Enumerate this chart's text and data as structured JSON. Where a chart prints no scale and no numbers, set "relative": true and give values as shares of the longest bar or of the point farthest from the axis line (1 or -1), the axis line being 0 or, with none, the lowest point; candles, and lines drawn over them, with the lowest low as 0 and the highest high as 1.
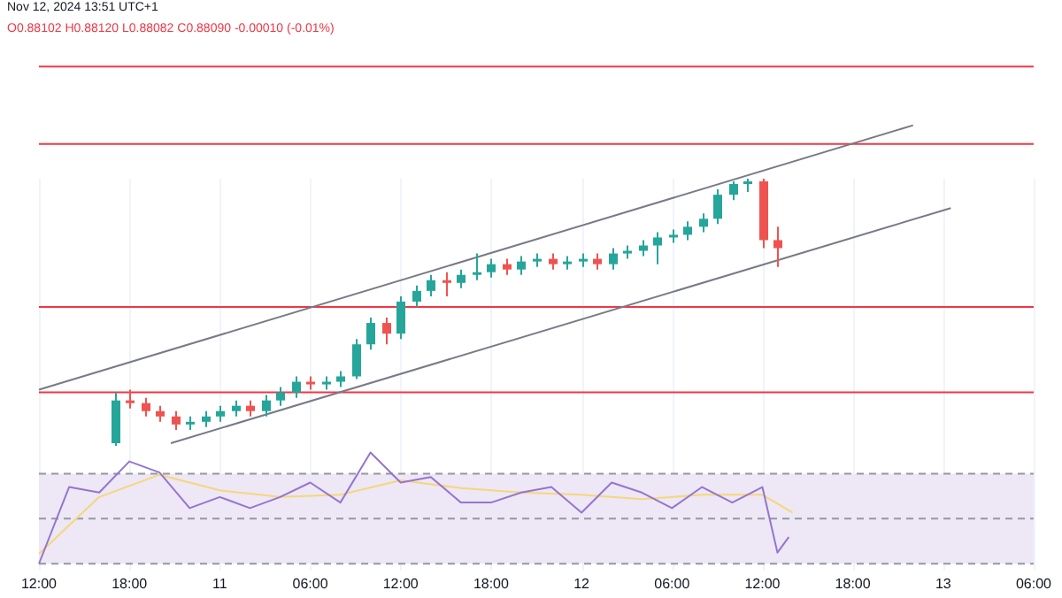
{
  "chart_data": [
    {
      "type": "candlestick",
      "title": "Nov 12, 2024 13:51 UTC+1",
      "subtitle": "O0.88102 H0.88120 L0.88082 C0.88090 -0.00010 (-0.01%)",
      "relative": true,
      "grid": "x",
      "tick_labels": false,
      "marker": "none",
      "x": [
        "2024-11-10T17:00",
        "2024-11-10T18:00",
        "2024-11-10T19:00",
        "2024-11-10T20:00",
        "2024-11-10T21:00",
        "2024-11-10T22:00",
        "2024-11-10T23:00",
        "2024-11-11T00:00",
        "2024-11-11T01:00",
        "2024-11-11T02:00",
        "2024-11-11T03:00",
        "2024-11-11T04:00",
        "2024-11-11T05:00",
        "2024-11-11T06:00",
        "2024-11-11T07:00",
        "2024-11-11T08:00",
        "2024-11-11T09:00",
        "2024-11-11T10:00",
        "2024-11-11T11:00",
        "2024-11-11T12:00",
        "2024-11-11T13:00",
        "2024-11-11T14:00",
        "2024-11-11T15:00",
        "2024-11-11T16:00",
        "2024-11-11T17:00",
        "2024-11-11T18:00",
        "2024-11-11T19:00",
        "2024-11-11T20:00",
        "2024-11-11T21:00",
        "2024-11-11T22:00",
        "2024-11-11T23:00",
        "2024-11-12T00:00",
        "2024-11-12T01:00",
        "2024-11-12T02:00",
        "2024-11-12T03:00",
        "2024-11-12T04:00",
        "2024-11-12T05:00",
        "2024-11-12T06:00",
        "2024-11-12T07:00",
        "2024-11-12T08:00",
        "2024-11-12T09:00",
        "2024-11-12T10:00",
        "2024-11-12T11:00",
        "2024-11-12T12:00",
        "2024-11-12T13:00"
      ],
      "ohlc": [
        [
          0.01,
          0.2,
          0,
          0.17
        ],
        [
          0.17,
          0.21,
          0.14,
          0.16
        ],
        [
          0.16,
          0.18,
          0.11,
          0.13
        ],
        [
          0.13,
          0.15,
          0.09,
          0.11
        ],
        [
          0.11,
          0.13,
          0.06,
          0.08
        ],
        [
          0.08,
          0.11,
          0.06,
          0.09
        ],
        [
          0.09,
          0.13,
          0.07,
          0.11
        ],
        [
          0.11,
          0.15,
          0.09,
          0.13
        ],
        [
          0.13,
          0.17,
          0.11,
          0.15
        ],
        [
          0.15,
          0.17,
          0.11,
          0.13
        ],
        [
          0.13,
          0.19,
          0.11,
          0.17
        ],
        [
          0.17,
          0.22,
          0.15,
          0.2
        ],
        [
          0.2,
          0.26,
          0.18,
          0.24
        ],
        [
          0.24,
          0.26,
          0.21,
          0.23
        ],
        [
          0.23,
          0.26,
          0.21,
          0.24
        ],
        [
          0.24,
          0.28,
          0.22,
          0.26
        ],
        [
          0.26,
          0.4,
          0.25,
          0.38
        ],
        [
          0.38,
          0.48,
          0.36,
          0.46
        ],
        [
          0.46,
          0.48,
          0.38,
          0.42
        ],
        [
          0.42,
          0.56,
          0.4,
          0.54
        ],
        [
          0.54,
          0.6,
          0.52,
          0.58
        ],
        [
          0.58,
          0.64,
          0.56,
          0.62
        ],
        [
          0.62,
          0.65,
          0.56,
          0.61
        ],
        [
          0.61,
          0.66,
          0.59,
          0.64
        ],
        [
          0.64,
          0.72,
          0.62,
          0.65
        ],
        [
          0.65,
          0.7,
          0.63,
          0.68
        ],
        [
          0.68,
          0.7,
          0.64,
          0.66
        ],
        [
          0.66,
          0.71,
          0.64,
          0.69
        ],
        [
          0.69,
          0.72,
          0.67,
          0.7
        ],
        [
          0.7,
          0.72,
          0.66,
          0.68
        ],
        [
          0.68,
          0.71,
          0.66,
          0.69
        ],
        [
          0.69,
          0.72,
          0.67,
          0.7
        ],
        [
          0.7,
          0.72,
          0.66,
          0.68
        ],
        [
          0.68,
          0.74,
          0.66,
          0.72
        ],
        [
          0.72,
          0.75,
          0.7,
          0.73
        ],
        [
          0.73,
          0.77,
          0.71,
          0.75
        ],
        [
          0.75,
          0.8,
          0.68,
          0.78
        ],
        [
          0.78,
          0.81,
          0.76,
          0.79
        ],
        [
          0.79,
          0.84,
          0.77,
          0.82
        ],
        [
          0.82,
          0.87,
          0.8,
          0.85
        ],
        [
          0.85,
          0.96,
          0.83,
          0.94
        ],
        [
          0.94,
          0.99,
          0.92,
          0.98
        ],
        [
          0.98,
          1.0,
          0.95,
          0.99
        ],
        [
          0.99,
          1.0,
          0.74,
          0.77
        ],
        [
          0.77,
          0.82,
          0.67,
          0.74
        ]
      ],
      "colors": [
        "#26a69a",
        "#ef5350",
        "#ef5350",
        "#ef5350",
        "#ef5350",
        "#26a69a",
        "#26a69a",
        "#26a69a",
        "#26a69a",
        "#ef5350",
        "#26a69a",
        "#26a69a",
        "#26a69a",
        "#ef5350",
        "#26a69a",
        "#26a69a",
        "#26a69a",
        "#26a69a",
        "#ef5350",
        "#26a69a",
        "#26a69a",
        "#26a69a",
        "#ef5350",
        "#26a69a",
        "#26a69a",
        "#26a69a",
        "#ef5350",
        "#26a69a",
        "#26a69a",
        "#ef5350",
        "#26a69a",
        "#26a69a",
        "#ef5350",
        "#26a69a",
        "#26a69a",
        "#26a69a",
        "#26a69a",
        "#26a69a",
        "#26a69a",
        "#26a69a",
        "#26a69a",
        "#26a69a",
        "#26a69a",
        "#ef5350",
        "#ef5350"
      ],
      "series": [
        {
          "type": "line",
          "color": "#787b86",
          "x": [
            "2024-11-10T12:00",
            "2024-11-12T22:00"
          ],
          "values": [
            0.21,
            1.2
          ]
        },
        {
          "type": "line",
          "color": "#787b86",
          "x": [
            "2024-11-10T20:45",
            "2024-11-13T00:30"
          ],
          "values": [
            0.01,
            0.89
          ]
        }
      ],
      "ref_lines": [
        {
          "axis": "y",
          "value": 1.42,
          "color": "#f23645"
        },
        {
          "axis": "y",
          "value": 1.13,
          "color": "#f23645"
        },
        {
          "axis": "y",
          "value": 0.52,
          "color": "#f23645"
        },
        {
          "axis": "y",
          "value": 0.2,
          "color": "#f23645"
        }
      ],
      "xlim": [
        "2024-11-10T12:00",
        "2024-11-13T06:00"
      ],
      "xticks": [
        {
          "value": "2024-11-10T12:00",
          "label": null
        },
        {
          "value": "2024-11-10T18:00",
          "label": null
        },
        {
          "value": "2024-11-11T00:00",
          "label": null
        },
        {
          "value": "2024-11-11T06:00",
          "label": null
        },
        {
          "value": "2024-11-11T12:00",
          "label": null
        },
        {
          "value": "2024-11-11T18:00",
          "label": null
        },
        {
          "value": "2024-11-12T00:00",
          "label": null
        },
        {
          "value": "2024-11-12T06:00",
          "label": null
        },
        {
          "value": "2024-11-12T12:00",
          "label": null
        },
        {
          "value": "2024-11-12T18:00",
          "label": null
        },
        {
          "value": "2024-11-13T00:00",
          "label": null
        },
        {
          "value": "2024-11-13T06:00",
          "label": null
        }
      ]
    },
    {
      "type": "line",
      "relative": true,
      "grid": "x",
      "tick_labels": "x",
      "marker": "none",
      "series": [
        {
          "color": "#9575cd",
          "x": [
            "2024-11-10T12:00",
            "2024-11-10T14:00",
            "2024-11-10T16:00",
            "2024-11-10T18:00",
            "2024-11-10T20:00",
            "2024-11-10T22:00",
            "2024-11-11T00:00",
            "2024-11-11T02:00",
            "2024-11-11T04:00",
            "2024-11-11T06:00",
            "2024-11-11T08:00",
            "2024-11-11T10:00",
            "2024-11-11T12:00",
            "2024-11-11T14:00",
            "2024-11-11T16:00",
            "2024-11-11T18:00",
            "2024-11-11T20:00",
            "2024-11-11T22:00",
            "2024-11-12T00:00",
            "2024-11-12T02:00",
            "2024-11-12T04:00",
            "2024-11-12T06:00",
            "2024-11-12T08:00",
            "2024-11-12T10:00",
            "2024-11-12T12:00",
            "2024-11-12T13:00",
            "2024-11-12T13:45"
          ],
          "values": [
            0,
            0.69,
            0.64,
            0.92,
            0.82,
            0.5,
            0.6,
            0.5,
            0.6,
            0.73,
            0.55,
            1,
            0.73,
            0.78,
            0.55,
            0.55,
            0.64,
            0.69,
            0.46,
            0.73,
            0.64,
            0.5,
            0.69,
            0.55,
            0.69,
            0.1,
            0.24
          ]
        },
        {
          "color": "#f5d77a",
          "x": [
            "2024-11-10T12:00",
            "2024-11-10T16:00",
            "2024-11-10T20:00",
            "2024-11-11T00:00",
            "2024-11-11T04:00",
            "2024-11-11T08:00",
            "2024-11-11T12:00",
            "2024-11-11T16:00",
            "2024-11-11T20:00",
            "2024-11-12T00:00",
            "2024-11-12T04:00",
            "2024-11-12T08:00",
            "2024-11-12T12:00",
            "2024-11-12T14:00"
          ],
          "values": [
            0.09,
            0.6,
            0.8,
            0.66,
            0.6,
            0.62,
            0.75,
            0.68,
            0.64,
            0.62,
            0.58,
            0.62,
            0.62,
            0.46
          ]
        }
      ],
      "bands": [
        {
          "axis": "y",
          "from": 0,
          "to": 0.81,
          "color": "#ede7f6"
        }
      ],
      "ref_lines": [
        {
          "axis": "y",
          "value": 0.81,
          "color": "#9598a1",
          "line_style": "dashed"
        },
        {
          "axis": "y",
          "value": 0.405,
          "color": "#9598a1",
          "line_style": "dashed"
        },
        {
          "axis": "y",
          "value": 0,
          "color": "#9598a1",
          "line_style": "dashed"
        }
      ],
      "xlim": [
        "2024-11-10T12:00",
        "2024-11-13T06:00"
      ],
      "xticks": [
        {
          "value": "2024-11-10T12:00",
          "label": "12:00"
        },
        {
          "value": "2024-11-10T18:00",
          "label": "18:00"
        },
        {
          "value": "2024-11-11T00:00",
          "label": "11"
        },
        {
          "value": "2024-11-11T06:00",
          "label": "06:00"
        },
        {
          "value": "2024-11-11T12:00",
          "label": "12:00"
        },
        {
          "value": "2024-11-11T18:00",
          "label": "18:00"
        },
        {
          "value": "2024-11-12T00:00",
          "label": "12"
        },
        {
          "value": "2024-11-12T06:00",
          "label": "06:00"
        },
        {
          "value": "2024-11-12T12:00",
          "label": "12:00"
        },
        {
          "value": "2024-11-12T18:00",
          "label": "18:00"
        },
        {
          "value": "2024-11-13T00:00",
          "label": "13"
        },
        {
          "value": "2024-11-13T06:00",
          "label": "06:00"
        }
      ]
    }
  ]
}
